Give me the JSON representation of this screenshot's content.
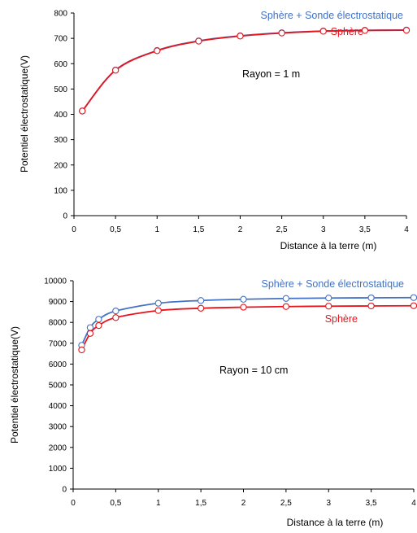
{
  "chart_data": [
    {
      "type": "line",
      "xlabel": "Distance à la terre (m)",
      "ylabel": "Potentiel électrostatique(V)",
      "xlim": [
        0,
        4
      ],
      "ylim": [
        0,
        800
      ],
      "xticks": [
        0,
        0.5,
        1,
        1.5,
        2,
        2.5,
        3,
        3.5,
        4
      ],
      "yticks": [
        0,
        100,
        200,
        300,
        400,
        500,
        600,
        700,
        800
      ],
      "xtick_labels": [
        "0",
        "0,5",
        "1",
        "1,5",
        "2",
        "2,5",
        "3",
        "3,5",
        "4"
      ],
      "ytick_labels": [
        "0",
        "100",
        "200",
        "300",
        "400",
        "500",
        "600",
        "700",
        "800"
      ],
      "annotation": "Rayon = 1 m",
      "grid": false,
      "legend_position": "top-right",
      "series": [
        {
          "name": "Sphère + Sonde électrostatique",
          "color": "#4472C4",
          "x": [
            0.1,
            0.5,
            1,
            1.5,
            2,
            2.5,
            3,
            3.5,
            4
          ],
          "y": [
            413,
            575,
            652,
            690,
            710,
            722,
            729,
            732,
            733
          ]
        },
        {
          "name": "Sphère",
          "color": "#E8141C",
          "x": [
            0.1,
            0.5,
            1,
            1.5,
            2,
            2.5,
            3,
            3.5,
            4
          ],
          "y": [
            413,
            574,
            651,
            689,
            709,
            721,
            728,
            731,
            732
          ]
        }
      ]
    },
    {
      "type": "line",
      "xlabel": "Distance à la terre (m)",
      "ylabel": "Potentiel électrostatique(V)",
      "xlim": [
        0,
        4
      ],
      "ylim": [
        0,
        10000
      ],
      "xticks": [
        0,
        0.5,
        1,
        1.5,
        2,
        2.5,
        3,
        3.5,
        4
      ],
      "yticks": [
        0,
        1000,
        2000,
        3000,
        4000,
        5000,
        6000,
        7000,
        8000,
        9000,
        10000
      ],
      "xtick_labels": [
        "0",
        "0,5",
        "1",
        "1,5",
        "2",
        "2,5",
        "3",
        "3,5",
        "4"
      ],
      "ytick_labels": [
        "0",
        "1000",
        "2000",
        "3000",
        "4000",
        "5000",
        "6000",
        "7000",
        "8000",
        "9000",
        "10000"
      ],
      "annotation": "Rayon = 10 cm",
      "grid": false,
      "legend_position": "top-right",
      "series": [
        {
          "name": "Sphère + Sonde électrostatique",
          "color": "#4472C4",
          "x": [
            0.1,
            0.2,
            0.3,
            0.5,
            1,
            1.5,
            2,
            2.5,
            3,
            3.5,
            4
          ],
          "y": [
            6900,
            7750,
            8150,
            8550,
            8920,
            9050,
            9110,
            9150,
            9170,
            9180,
            9190
          ]
        },
        {
          "name": "Sphère",
          "color": "#E8141C",
          "x": [
            0.1,
            0.2,
            0.3,
            0.5,
            1,
            1.5,
            2,
            2.5,
            3,
            3.5,
            4
          ],
          "y": [
            6680,
            7470,
            7850,
            8230,
            8570,
            8680,
            8730,
            8760,
            8780,
            8790,
            8800
          ]
        }
      ]
    }
  ]
}
